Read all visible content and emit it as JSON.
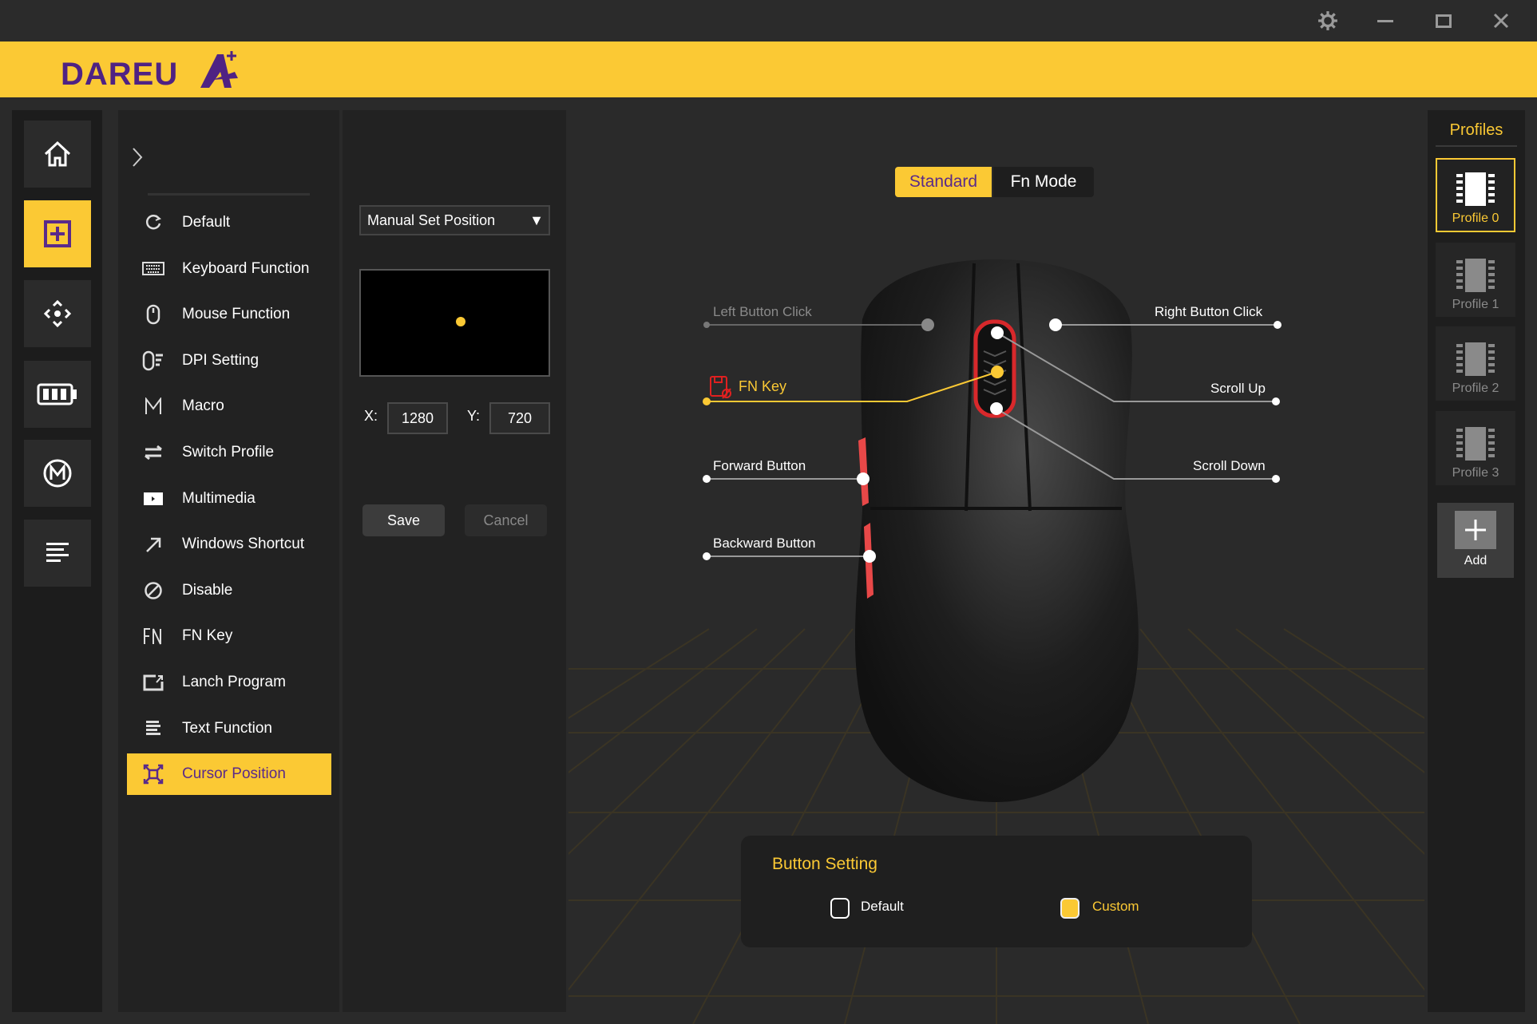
{
  "window": {
    "controls": [
      {
        "icon": "gear-icon"
      },
      {
        "icon": "minimize-icon"
      },
      {
        "icon": "maximize-icon"
      },
      {
        "icon": "close-icon"
      }
    ]
  },
  "brand": {
    "logo_text": "DAREU A+",
    "accent": "#fbc934",
    "purple": "#5a2a8a"
  },
  "rail": {
    "items": [
      {
        "icon": "home-icon"
      },
      {
        "icon": "button-assign-icon",
        "active": true
      },
      {
        "icon": "dpi-move-icon"
      },
      {
        "icon": "battery-icon"
      },
      {
        "icon": "macro-icon"
      },
      {
        "icon": "list-icon"
      }
    ]
  },
  "menu": {
    "items": [
      {
        "label": "Default",
        "icon": "refresh-icon"
      },
      {
        "label": "Keyboard Function",
        "icon": "keyboard-icon"
      },
      {
        "label": "Mouse Function",
        "icon": "mouse-icon"
      },
      {
        "label": "DPI Setting",
        "icon": "dpi-icon"
      },
      {
        "label": "Macro",
        "icon": "macro-m-icon"
      },
      {
        "label": "Switch Profile",
        "icon": "switch-icon"
      },
      {
        "label": "Multimedia",
        "icon": "multimedia-icon"
      },
      {
        "label": "Windows Shortcut",
        "icon": "shortcut-arrow-icon"
      },
      {
        "label": "Disable",
        "icon": "disable-icon"
      },
      {
        "label": "FN Key",
        "icon": "fn-icon"
      },
      {
        "label": "Lanch Program",
        "icon": "launch-icon"
      },
      {
        "label": "Text Function",
        "icon": "text-icon"
      },
      {
        "label": "Cursor Position",
        "icon": "cursor-position-icon",
        "active": true
      }
    ]
  },
  "settings": {
    "mode": "Manual Set Position",
    "x_label": "X:",
    "x_value": "1280",
    "y_label": "Y:",
    "y_value": "720",
    "save": "Save",
    "cancel": "Cancel"
  },
  "tabs": [
    {
      "label": "Standard",
      "active": true
    },
    {
      "label": "Fn Mode"
    }
  ],
  "mouse_buttons": {
    "left": "Left Button Click",
    "right": "Right Button Click",
    "fn": "FN Key",
    "scroll_up": "Scroll Up",
    "forward": "Forward Button",
    "scroll_down": "Scroll Down",
    "backward": "Backward Button"
  },
  "button_setting": {
    "title": "Button Setting",
    "default": "Default",
    "custom": "Custom",
    "selected": "Custom"
  },
  "profiles": {
    "title": "Profiles",
    "items": [
      "Profile 0",
      "Profile 1",
      "Profile 2",
      "Profile 3"
    ],
    "active": 0,
    "add": "Add"
  }
}
